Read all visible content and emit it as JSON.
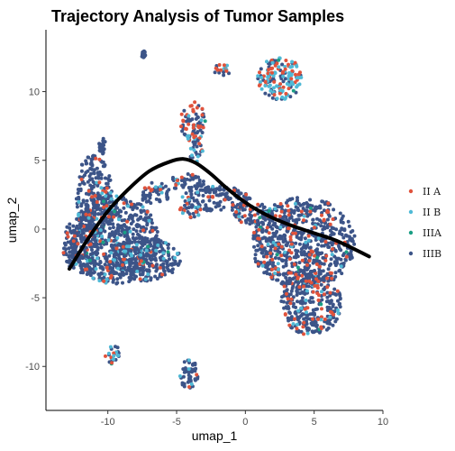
{
  "chart_data": {
    "type": "scatter",
    "title": "Trajectory Analysis of Tumor Samples",
    "xlabel": "umap_1",
    "ylabel": "umap_2",
    "xlim": [
      -14.5,
      10
    ],
    "ylim": [
      -13.2,
      14.5
    ],
    "x_ticks": [
      -10,
      -5,
      0,
      5,
      10
    ],
    "y_ticks": [
      -10,
      -5,
      0,
      5,
      10
    ],
    "grid": false,
    "legend_position": "right",
    "series": [
      {
        "name": "II A",
        "color": "#E0533C"
      },
      {
        "name": "II B",
        "color": "#4FB9D6"
      },
      {
        "name": "IIIA",
        "color": "#1A9E84"
      },
      {
        "name": "IIIB",
        "color": "#3C5488"
      }
    ],
    "clusters": [
      {
        "cx": -9.5,
        "cy": -0.8,
        "rx": 3.2,
        "ry": 3.2,
        "mix": [
          0.05,
          0.06,
          0.01,
          0.88
        ]
      },
      {
        "cx": -7.5,
        "cy": -2.2,
        "rx": 2.8,
        "ry": 1.6,
        "mix": [
          0.05,
          0.06,
          0.01,
          0.88
        ]
      },
      {
        "cx": -11.0,
        "cy": 2.5,
        "rx": 1.3,
        "ry": 3.0,
        "mix": [
          0.06,
          0.05,
          0.01,
          0.88
        ]
      },
      {
        "cx": -12.0,
        "cy": -1.2,
        "rx": 1.3,
        "ry": 2.0,
        "mix": [
          0.06,
          0.05,
          0.01,
          0.88
        ]
      },
      {
        "cx": -6.6,
        "cy": 2.6,
        "rx": 1.1,
        "ry": 0.8,
        "mix": [
          0.08,
          0.06,
          0.01,
          0.85
        ]
      },
      {
        "cx": -4.3,
        "cy": 3.4,
        "rx": 1.3,
        "ry": 0.6,
        "mix": [
          0.1,
          0.04,
          0.01,
          0.85
        ]
      },
      {
        "cx": -2.0,
        "cy": 2.2,
        "rx": 2.6,
        "ry": 0.9,
        "mix": [
          0.12,
          0.03,
          0.01,
          0.84
        ]
      },
      {
        "cx": 0.6,
        "cy": 1.1,
        "rx": 1.4,
        "ry": 0.8,
        "mix": [
          0.14,
          0.04,
          0.01,
          0.81
        ]
      },
      {
        "cx": -4.0,
        "cy": 1.3,
        "rx": 0.9,
        "ry": 0.5,
        "mix": [
          0.12,
          0.1,
          0.01,
          0.77
        ]
      },
      {
        "cx": 4.2,
        "cy": -1.0,
        "rx": 3.8,
        "ry": 3.3,
        "mix": [
          0.1,
          0.04,
          0.01,
          0.85
        ]
      },
      {
        "cx": 4.8,
        "cy": -5.3,
        "rx": 2.2,
        "ry": 2.5,
        "mix": [
          0.14,
          0.06,
          0.01,
          0.79
        ]
      },
      {
        "cx": 2.5,
        "cy": 11.0,
        "rx": 1.6,
        "ry": 1.6,
        "mix": [
          0.2,
          0.5,
          0.01,
          0.29
        ]
      },
      {
        "cx": -3.8,
        "cy": 7.8,
        "rx": 0.9,
        "ry": 1.5,
        "mix": [
          0.38,
          0.1,
          0.01,
          0.51
        ]
      },
      {
        "cx": -3.6,
        "cy": 5.7,
        "rx": 0.5,
        "ry": 0.8,
        "mix": [
          0.2,
          0.15,
          0.01,
          0.64
        ]
      },
      {
        "cx": -1.7,
        "cy": 11.6,
        "rx": 0.6,
        "ry": 0.5,
        "mix": [
          0.35,
          0.3,
          0.01,
          0.34
        ]
      },
      {
        "cx": -9.7,
        "cy": -9.1,
        "rx": 0.6,
        "ry": 0.7,
        "mix": [
          0.18,
          0.3,
          0.04,
          0.48
        ]
      },
      {
        "cx": -4.1,
        "cy": -10.6,
        "rx": 0.7,
        "ry": 1.1,
        "mix": [
          0.03,
          0.05,
          0.01,
          0.91
        ]
      },
      {
        "cx": -7.4,
        "cy": 12.7,
        "rx": 0.15,
        "ry": 0.25,
        "mix": [
          0.0,
          0.0,
          0.0,
          1.0
        ]
      },
      {
        "cx": -10.4,
        "cy": 6.0,
        "rx": 0.25,
        "ry": 0.6,
        "mix": [
          0.0,
          0.0,
          0.0,
          1.0
        ]
      }
    ],
    "trajectory": {
      "x": [
        -12.8,
        -11.5,
        -10.0,
        -8.5,
        -7.0,
        -5.5,
        -4.5,
        -3.6,
        -2.5,
        -1.5,
        -0.5,
        0.5,
        2.0,
        3.5,
        5.0,
        6.5,
        8.0,
        9.0
      ],
      "y": [
        -2.9,
        -0.8,
        1.3,
        2.9,
        4.2,
        4.9,
        5.1,
        4.8,
        4.0,
        3.1,
        2.3,
        1.6,
        0.8,
        0.2,
        -0.3,
        -0.8,
        -1.5,
        -2.0
      ],
      "color": "#000000"
    }
  }
}
